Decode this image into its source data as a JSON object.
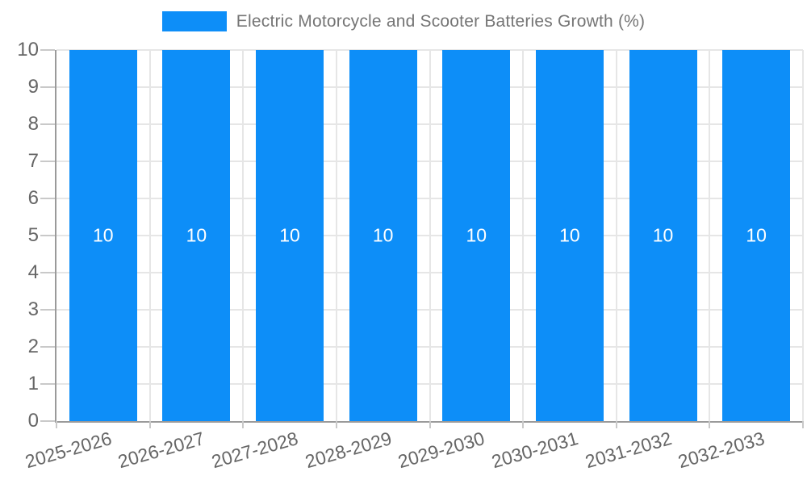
{
  "chart_data": {
    "type": "bar",
    "title": "Electric Motorcycle and Scooter Batteries Growth (%)",
    "categories": [
      "2025-2026",
      "2026-2027",
      "2027-2028",
      "2028-2029",
      "2029-2030",
      "2030-2031",
      "2031-2032",
      "2032-2033"
    ],
    "values": [
      10,
      10,
      10,
      10,
      10,
      10,
      10,
      10
    ],
    "xlabel": "",
    "ylabel": "",
    "ylim": [
      0,
      10
    ],
    "yticks": [
      0,
      1,
      2,
      3,
      4,
      5,
      6,
      7,
      8,
      9,
      10
    ],
    "grid": true,
    "legend_position": "top",
    "bar_value_labels_visible": true
  },
  "style": {
    "bar_color": "#0D8EF8",
    "grid_color": "#E6E6E6",
    "tick_color": "#C9C9C9",
    "axis_color": "#9A9A9A",
    "axis_label_color": "#666666",
    "title_color": "#757575",
    "bar_label_color": "#FFFFFF",
    "background_color": "#FFFFFF"
  }
}
